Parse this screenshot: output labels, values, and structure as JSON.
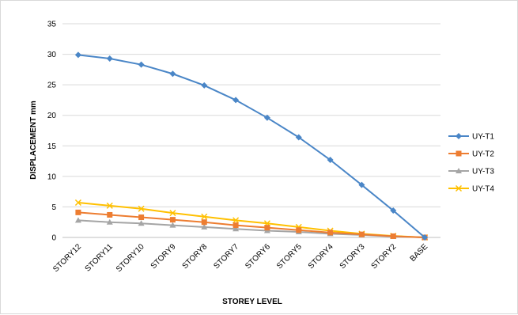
{
  "chart_data": {
    "type": "line",
    "xlabel": "STOREY LEVEL",
    "ylabel": "DISPLACEMENT  mm",
    "ylim": [
      0,
      35
    ],
    "yticks": [
      0,
      5,
      10,
      15,
      20,
      25,
      30,
      35
    ],
    "categories": [
      "STORY12",
      "STORY11",
      "STORY10",
      "STORY9",
      "STORY8",
      "STORY7",
      "STORY6",
      "STORY5",
      "STORY4",
      "STORY3",
      "STORY2",
      "BASE"
    ],
    "grid": "horizontal",
    "legend_position": "right",
    "series": [
      {
        "name": "UY-T1",
        "color": "#4a86c7",
        "marker": "diamond",
        "values": [
          29.9,
          29.3,
          28.3,
          26.8,
          24.9,
          22.5,
          19.6,
          16.4,
          12.7,
          8.6,
          4.4,
          0.0
        ]
      },
      {
        "name": "UY-T2",
        "color": "#ed7d31",
        "marker": "square",
        "values": [
          4.1,
          3.7,
          3.3,
          2.9,
          2.5,
          2.0,
          1.6,
          1.2,
          0.8,
          0.5,
          0.2,
          0.0
        ]
      },
      {
        "name": "UY-T3",
        "color": "#a5a5a5",
        "marker": "triangle",
        "values": [
          2.8,
          2.5,
          2.3,
          2.0,
          1.7,
          1.4,
          1.1,
          0.9,
          0.6,
          0.4,
          0.15,
          0.0
        ]
      },
      {
        "name": "UY-T4",
        "color": "#ffc000",
        "marker": "x",
        "values": [
          5.7,
          5.2,
          4.7,
          4.0,
          3.4,
          2.8,
          2.3,
          1.7,
          1.1,
          0.6,
          0.25,
          0.0
        ]
      }
    ]
  }
}
